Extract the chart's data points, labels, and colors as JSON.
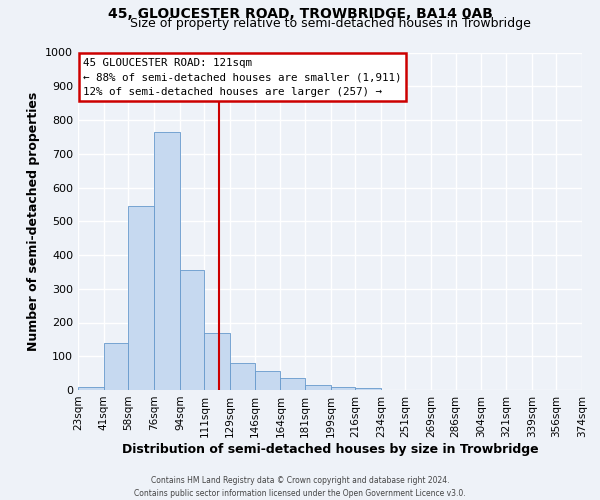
{
  "title": "45, GLOUCESTER ROAD, TROWBRIDGE, BA14 0AB",
  "subtitle": "Size of property relative to semi-detached houses in Trowbridge",
  "xlabel": "Distribution of semi-detached houses by size in Trowbridge",
  "ylabel": "Number of semi-detached properties",
  "bin_labels": [
    "23sqm",
    "41sqm",
    "58sqm",
    "76sqm",
    "94sqm",
    "111sqm",
    "129sqm",
    "146sqm",
    "164sqm",
    "181sqm",
    "199sqm",
    "216sqm",
    "234sqm",
    "251sqm",
    "269sqm",
    "286sqm",
    "304sqm",
    "321sqm",
    "339sqm",
    "356sqm",
    "374sqm"
  ],
  "bin_edges": [
    23,
    41,
    58,
    76,
    94,
    111,
    129,
    146,
    164,
    181,
    199,
    216,
    234,
    251,
    269,
    286,
    304,
    321,
    339,
    356,
    374
  ],
  "bar_heights": [
    10,
    140,
    545,
    765,
    355,
    170,
    80,
    55,
    35,
    15,
    10,
    5,
    0,
    0,
    0,
    0,
    0,
    0,
    0,
    0
  ],
  "bar_color": "#c6d9f0",
  "bar_edge_color": "#6699cc",
  "vline_x": 121,
  "vline_color": "#cc0000",
  "ylim": [
    0,
    1000
  ],
  "yticks": [
    0,
    100,
    200,
    300,
    400,
    500,
    600,
    700,
    800,
    900,
    1000
  ],
  "annotation_title": "45 GLOUCESTER ROAD: 121sqm",
  "annotation_line1": "← 88% of semi-detached houses are smaller (1,911)",
  "annotation_line2": "12% of semi-detached houses are larger (257) →",
  "annotation_box_color": "#ffffff",
  "annotation_box_edge_color": "#cc0000",
  "footer_line1": "Contains HM Land Registry data © Crown copyright and database right 2024.",
  "footer_line2": "Contains public sector information licensed under the Open Government Licence v3.0.",
  "background_color": "#eef2f8",
  "grid_color": "#ffffff",
  "title_fontsize": 10,
  "subtitle_fontsize": 9,
  "axis_label_fontsize": 9
}
